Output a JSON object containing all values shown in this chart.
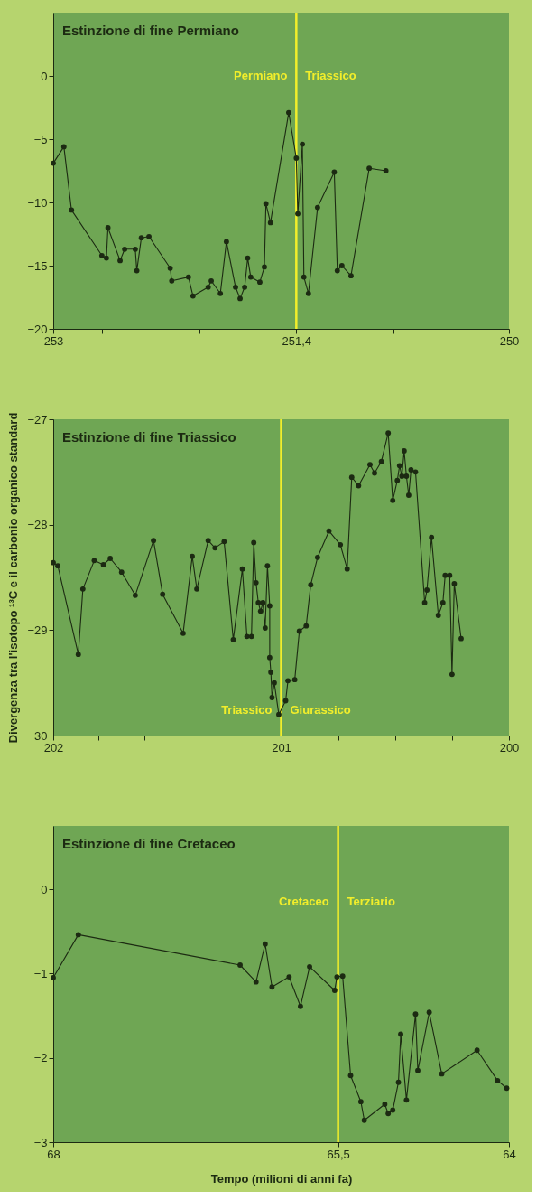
{
  "chart_data": [
    {
      "type": "line",
      "title": "Estinzione di fine Permiano",
      "marker": "circle",
      "line_style": "solid",
      "grid": false,
      "x": [
        253,
        252.93,
        252.88,
        252.68,
        252.65,
        252.64,
        252.56,
        252.53,
        252.46,
        252.45,
        252.42,
        252.37,
        252.23,
        252.22,
        252.11,
        252.08,
        251.98,
        251.96,
        251.9,
        251.86,
        251.8,
        251.77,
        251.74,
        251.72,
        251.7,
        251.64,
        251.61,
        251.6,
        251.57,
        251.45,
        251.4,
        251.39,
        251.36,
        251.35,
        251.32,
        251.26,
        251.15,
        251.13,
        251.1,
        251.04,
        250.92,
        250.81
      ],
      "series": [
        {
          "color": "#1c2a12",
          "values": [
            -6.9,
            -5.6,
            -10.6,
            -14.2,
            -14.4,
            -12.0,
            -14.6,
            -13.7,
            -13.7,
            -15.4,
            -12.8,
            -12.7,
            -15.2,
            -16.2,
            -15.9,
            -17.4,
            -16.7,
            -16.2,
            -17.2,
            -13.1,
            -16.7,
            -17.6,
            -16.7,
            -14.4,
            -15.9,
            -16.3,
            -15.1,
            -10.1,
            -11.6,
            -2.9,
            -6.5,
            -10.9,
            -5.4,
            -15.9,
            -17.2,
            -10.4,
            -7.6,
            -15.4,
            -15.0,
            -15.8,
            -7.3,
            -7.5
          ]
        }
      ],
      "xlim": [
        253,
        250
      ],
      "xticks": [
        253,
        {
          "value": 252.68,
          "label": null
        },
        {
          "value": 252.04,
          "label": null
        },
        {
          "value": 251.4,
          "label": "251,4"
        },
        {
          "value": 250.76,
          "label": null
        },
        250
      ],
      "ylim": [
        -20,
        5
      ],
      "yticks": [
        0,
        -5,
        -10,
        -15,
        -20
      ],
      "ref_lines": [
        {
          "axis": "x",
          "value": 251.4,
          "color": "#f2ee2b"
        }
      ],
      "annotations": [
        "Permiano",
        "Triassico"
      ]
    },
    {
      "type": "line",
      "title": "Estinzione di fine Triassico",
      "ylabel": "Divergenza tra l'isotopo ¹³C e il carbonio organico standard",
      "marker": "circle",
      "line_style": "solid",
      "grid": false,
      "x": [
        202.0,
        201.98,
        201.89,
        201.87,
        201.82,
        201.78,
        201.75,
        201.7,
        201.64,
        201.56,
        201.52,
        201.43,
        201.39,
        201.37,
        201.32,
        201.29,
        201.25,
        201.21,
        201.17,
        201.15,
        201.13,
        201.12,
        201.11,
        201.1,
        201.09,
        201.08,
        201.07,
        201.06,
        201.05,
        201.05,
        201.045,
        201.04,
        201.03,
        201.01,
        200.98,
        200.97,
        200.94,
        200.92,
        200.89,
        200.87,
        200.84,
        200.79,
        200.74,
        200.71,
        200.69,
        200.66,
        200.61,
        200.59,
        200.56,
        200.53,
        200.51,
        200.49,
        200.48,
        200.47,
        200.46,
        200.45,
        200.44,
        200.43,
        200.41,
        200.37,
        200.36,
        200.34,
        200.31,
        200.29,
        200.28,
        200.26,
        200.25,
        200.24,
        200.21
      ],
      "series": [
        {
          "color": "#1c2a12",
          "values": [
            -28.36,
            -28.39,
            -29.23,
            -28.61,
            -28.34,
            -28.38,
            -28.32,
            -28.45,
            -28.67,
            -28.15,
            -28.66,
            -29.03,
            -28.3,
            -28.61,
            -28.15,
            -28.22,
            -28.16,
            -29.09,
            -28.42,
            -29.06,
            -29.06,
            -28.17,
            -28.55,
            -28.74,
            -28.82,
            -28.74,
            -28.98,
            -28.39,
            -28.77,
            -29.26,
            -29.4,
            -29.64,
            -29.5,
            -29.8,
            -29.67,
            -29.48,
            -29.47,
            -29.01,
            -28.96,
            -28.57,
            -28.31,
            -28.06,
            -28.19,
            -28.42,
            -27.55,
            -27.63,
            -27.43,
            -27.51,
            -27.4,
            -27.13,
            -27.77,
            -27.58,
            -27.44,
            -27.54,
            -27.3,
            -27.54,
            -27.72,
            -27.48,
            -27.5,
            -28.74,
            -28.62,
            -28.12,
            -28.86,
            -28.74,
            -28.48,
            -28.48,
            -29.42,
            -28.56,
            -29.08
          ]
        }
      ],
      "xlim": [
        202,
        200
      ],
      "xticks": [
        202,
        {
          "value": 201.8,
          "label": null
        },
        {
          "value": 201.6,
          "label": null
        },
        {
          "value": 201.4,
          "label": null
        },
        {
          "value": 201.2,
          "label": null
        },
        201,
        {
          "value": 200.75,
          "label": null
        },
        {
          "value": 200.5,
          "label": null
        },
        {
          "value": 200.25,
          "label": null
        },
        200
      ],
      "ylim": [
        -30,
        -27
      ],
      "yticks": [
        -27,
        -28,
        -29,
        -30
      ],
      "ref_lines": [
        {
          "axis": "x",
          "value": 201,
          "color": "#f2ee2b"
        }
      ],
      "annotations": [
        "Triassico",
        "Giurassico"
      ]
    },
    {
      "type": "line",
      "title": "Estinzione di fine Cretaceo",
      "xlabel": "Tempo (milioni di anni fa)",
      "marker": "circle",
      "line_style": "solid",
      "grid": false,
      "x": [
        68.0,
        67.78,
        66.36,
        66.22,
        66.14,
        66.08,
        65.93,
        65.83,
        65.75,
        65.53,
        65.51,
        65.46,
        65.39,
        65.3,
        65.27,
        65.09,
        65.06,
        65.02,
        64.97,
        64.95,
        64.9,
        64.82,
        64.8,
        64.7,
        64.59,
        64.28,
        64.1,
        64.02
      ],
      "series": [
        {
          "color": "#1c2a12",
          "values": [
            -1.05,
            -0.54,
            -0.9,
            -1.1,
            -0.65,
            -1.16,
            -1.04,
            -1.39,
            -0.92,
            -1.2,
            -1.04,
            -1.03,
            -2.21,
            -2.52,
            -2.74,
            -2.55,
            -2.66,
            -2.62,
            -2.29,
            -1.72,
            -2.5,
            -1.48,
            -2.15,
            -1.46,
            -2.19,
            -1.91,
            -2.27,
            -2.36
          ]
        }
      ],
      "xlim": [
        68,
        64
      ],
      "xticks": [
        68,
        {
          "value": 65.5,
          "label": "65,5"
        },
        64
      ],
      "ylim": [
        -3,
        0.75
      ],
      "yticks": [
        0,
        -1,
        -2,
        -3
      ],
      "ref_lines": [
        {
          "axis": "x",
          "value": 65.5,
          "color": "#f2ee2b"
        }
      ],
      "annotations": [
        "Cretaceo",
        "Terziario"
      ]
    }
  ]
}
